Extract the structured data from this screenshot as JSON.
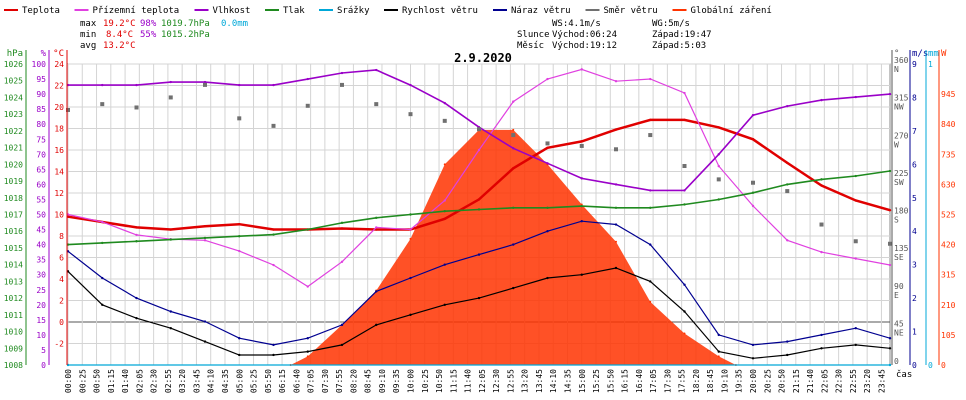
{
  "legend": [
    {
      "label": "Teplota",
      "color": "#e00000"
    },
    {
      "label": "Přízemní teplota",
      "color": "#e040e0"
    },
    {
      "label": "Vlhkost",
      "color": "#9a00c8"
    },
    {
      "label": "Tlak",
      "color": "#1f8a1f"
    },
    {
      "label": "Srážky",
      "color": "#00a8d8"
    },
    {
      "label": "Rychlost větru",
      "color": "#000000"
    },
    {
      "label": "Náraz větru",
      "color": "#000090"
    },
    {
      "label": "Směr větru",
      "color": "#707070"
    },
    {
      "label": "Globální záření",
      "color": "#ff3300"
    }
  ],
  "stats": {
    "max": {
      "label": "max",
      "temp": "19.2°C",
      "hum": "98%",
      "press": "1019.7hPa",
      "rain": "0.0mm"
    },
    "min": {
      "label": "min",
      "temp": "8.4°C",
      "hum": "55%",
      "press": "1015.2hPa"
    },
    "avg": {
      "label": "avg",
      "temp": "13.2°C"
    }
  },
  "wind_info": {
    "ws": "WS:4.1m/s",
    "wg": "WG:5m/s"
  },
  "sun": {
    "label": "Slunce",
    "rise": "Východ:06:24",
    "set": "Západ:19:47"
  },
  "moon": {
    "label": "Měsíc",
    "rise": "Východ:19:12",
    "set": "Západ:5:03"
  },
  "chart_data": {
    "type": "line",
    "title": "2.9.2020",
    "xlabel": "čas",
    "x_ticks": [
      "00:00",
      "00:25",
      "00:50",
      "01:15",
      "01:40",
      "02:05",
      "02:30",
      "02:55",
      "03:20",
      "03:45",
      "04:10",
      "04:35",
      "05:00",
      "05:25",
      "05:50",
      "06:15",
      "06:40",
      "07:05",
      "07:30",
      "07:55",
      "08:20",
      "08:45",
      "09:10",
      "09:35",
      "10:00",
      "10:25",
      "10:50",
      "11:15",
      "11:40",
      "12:05",
      "12:30",
      "12:55",
      "13:20",
      "13:45",
      "14:10",
      "14:35",
      "15:00",
      "15:25",
      "15:50",
      "16:15",
      "16:40",
      "17:05",
      "17:30",
      "17:55",
      "18:20",
      "18:45",
      "19:10",
      "19:35",
      "20:00",
      "20:25",
      "20:50",
      "21:15",
      "21:40",
      "22:05",
      "22:30",
      "22:55",
      "23:20",
      "23:45"
    ],
    "axes": {
      "pressure": {
        "label": "hPa",
        "ticks": [
          "1008",
          "1009",
          "1010",
          "1011",
          "1012",
          "1013",
          "1014",
          "1015",
          "1016",
          "1017",
          "1018",
          "1019",
          "1020",
          "1021",
          "1022",
          "1023",
          "1024",
          "1025",
          "1026"
        ],
        "range": [
          1008,
          1026
        ]
      },
      "humidity": {
        "label": "%",
        "ticks": [
          "0",
          "5",
          "10",
          "15",
          "20",
          "25",
          "30",
          "35",
          "40",
          "45",
          "50",
          "55",
          "60",
          "65",
          "70",
          "75",
          "80",
          "85",
          "90",
          "95",
          "100"
        ],
        "range": [
          0,
          100
        ]
      },
      "temperature": {
        "label": "°C",
        "ticks": [
          "-2",
          "0",
          "2",
          "4",
          "6",
          "8",
          "10",
          "12",
          "14",
          "16",
          "18",
          "20",
          "22",
          "24"
        ],
        "range": [
          -4,
          24
        ]
      },
      "wind_dir": {
        "label": "°",
        "ticks": [
          "0",
          "45",
          "90",
          "135",
          "180",
          "225",
          "270",
          "315",
          "360"
        ],
        "compass": [
          "",
          "NE",
          "E",
          "SE",
          "S",
          "SW",
          "W",
          "NW",
          "N"
        ],
        "range": [
          0,
          360
        ]
      },
      "wind_speed": {
        "label": "m/s",
        "ticks": [
          "0",
          "1",
          "2",
          "3",
          "4",
          "5",
          "6",
          "7",
          "8",
          "9"
        ],
        "range": [
          0,
          9
        ]
      },
      "rain": {
        "label": "mm",
        "ticks": [
          "0",
          "1"
        ],
        "range": [
          0,
          1
        ]
      },
      "radiation": {
        "label": "W",
        "ticks": [
          "0",
          "105",
          "210",
          "315",
          "420",
          "525",
          "630",
          "735",
          "840",
          "945"
        ],
        "range": [
          0,
          1050
        ]
      }
    },
    "series": [
      {
        "name": "Teplota",
        "unit": "°C",
        "x": [
          0,
          1,
          2,
          3,
          4,
          5,
          6,
          7,
          8,
          9,
          10,
          11,
          12,
          13,
          14,
          15,
          16,
          17,
          18,
          19,
          20,
          21,
          22,
          23,
          24
        ],
        "values": [
          9.8,
          9.3,
          8.8,
          8.6,
          8.9,
          9.1,
          8.6,
          8.6,
          8.7,
          8.6,
          8.6,
          9.6,
          11.4,
          14.3,
          16.2,
          16.8,
          17.9,
          18.8,
          18.8,
          18.1,
          17.0,
          14.8,
          12.7,
          11.3,
          10.4
        ]
      },
      {
        "name": "Přízemní teplota",
        "unit": "°C",
        "x": [
          0,
          1,
          2,
          3,
          4,
          5,
          6,
          7,
          8,
          9,
          10,
          11,
          12,
          13,
          14,
          15,
          16,
          17,
          18,
          19,
          20,
          21,
          22,
          23,
          24
        ],
        "values": [
          10.0,
          9.3,
          8.1,
          7.7,
          7.6,
          6.6,
          5.3,
          3.3,
          5.6,
          8.8,
          8.6,
          11.3,
          16.0,
          20.5,
          22.6,
          23.5,
          22.4,
          22.6,
          21.3,
          14.5,
          10.8,
          7.6,
          6.5,
          5.9,
          5.3
        ]
      },
      {
        "name": "Vlhkost",
        "unit": "%",
        "x": [
          0,
          1,
          2,
          3,
          4,
          5,
          6,
          7,
          8,
          9,
          10,
          11,
          12,
          13,
          14,
          15,
          16,
          17,
          18,
          19,
          20,
          21,
          22,
          23,
          24
        ],
        "values": [
          93,
          93,
          93,
          94,
          94,
          93,
          93,
          95,
          97,
          98,
          93,
          87,
          79,
          72,
          67,
          62,
          60,
          58,
          58,
          70,
          83,
          86,
          88,
          89,
          90
        ]
      },
      {
        "name": "Tlak",
        "unit": "hPa",
        "x": [
          0,
          1,
          2,
          3,
          4,
          5,
          6,
          7,
          8,
          9,
          10,
          11,
          12,
          13,
          14,
          15,
          16,
          17,
          18,
          19,
          20,
          21,
          22,
          23,
          24
        ],
        "values": [
          1015.2,
          1015.3,
          1015.4,
          1015.5,
          1015.6,
          1015.7,
          1015.8,
          1016.1,
          1016.5,
          1016.8,
          1017.0,
          1017.2,
          1017.3,
          1017.4,
          1017.4,
          1017.5,
          1017.4,
          1017.4,
          1017.6,
          1017.9,
          1018.3,
          1018.8,
          1019.1,
          1019.3,
          1019.6
        ]
      },
      {
        "name": "Rychlost větru",
        "unit": "m/s",
        "x": [
          0,
          1,
          2,
          3,
          4,
          5,
          6,
          7,
          8,
          9,
          10,
          11,
          12,
          13,
          14,
          15,
          16,
          17,
          18,
          19,
          20,
          21,
          22,
          23,
          24
        ],
        "values": [
          2.8,
          1.8,
          1.4,
          1.1,
          0.7,
          0.3,
          0.3,
          0.4,
          0.6,
          1.2,
          1.5,
          1.8,
          2.0,
          2.3,
          2.6,
          2.7,
          2.9,
          2.5,
          1.6,
          0.4,
          0.2,
          0.3,
          0.5,
          0.6,
          0.5
        ]
      },
      {
        "name": "Náraz větru",
        "unit": "m/s",
        "x": [
          0,
          1,
          2,
          3,
          4,
          5,
          6,
          7,
          8,
          9,
          10,
          11,
          12,
          13,
          14,
          15,
          16,
          17,
          18,
          19,
          20,
          21,
          22,
          23,
          24
        ],
        "values": [
          3.4,
          2.6,
          2.0,
          1.6,
          1.3,
          0.8,
          0.6,
          0.8,
          1.2,
          2.2,
          2.6,
          3.0,
          3.3,
          3.6,
          4.0,
          4.3,
          4.2,
          3.6,
          2.4,
          0.9,
          0.6,
          0.7,
          0.9,
          1.1,
          0.8
        ]
      },
      {
        "name": "Směr větru",
        "unit": "°",
        "x": [
          0,
          1,
          2,
          3,
          4,
          5,
          6,
          7,
          8,
          9,
          10,
          11,
          12,
          13,
          14,
          15,
          16,
          17,
          18,
          19,
          20,
          21,
          22,
          23,
          24
        ],
        "values": [
          305,
          312,
          308,
          320,
          335,
          295,
          286,
          310,
          335,
          312,
          300,
          292,
          282,
          275,
          265,
          262,
          258,
          275,
          238,
          222,
          218,
          208,
          168,
          148,
          145
        ]
      },
      {
        "name": "Globální záření",
        "unit": "W",
        "x": [
          6.5,
          7,
          8,
          9,
          10,
          11,
          12,
          13,
          14,
          15,
          16,
          17,
          18,
          19,
          19.5
        ],
        "values": [
          0,
          30,
          140,
          260,
          440,
          700,
          820,
          820,
          700,
          560,
          430,
          220,
          110,
          30,
          0
        ]
      },
      {
        "name": "Srážky",
        "unit": "mm",
        "x": [
          0,
          24
        ],
        "values": [
          0,
          0
        ]
      }
    ]
  }
}
